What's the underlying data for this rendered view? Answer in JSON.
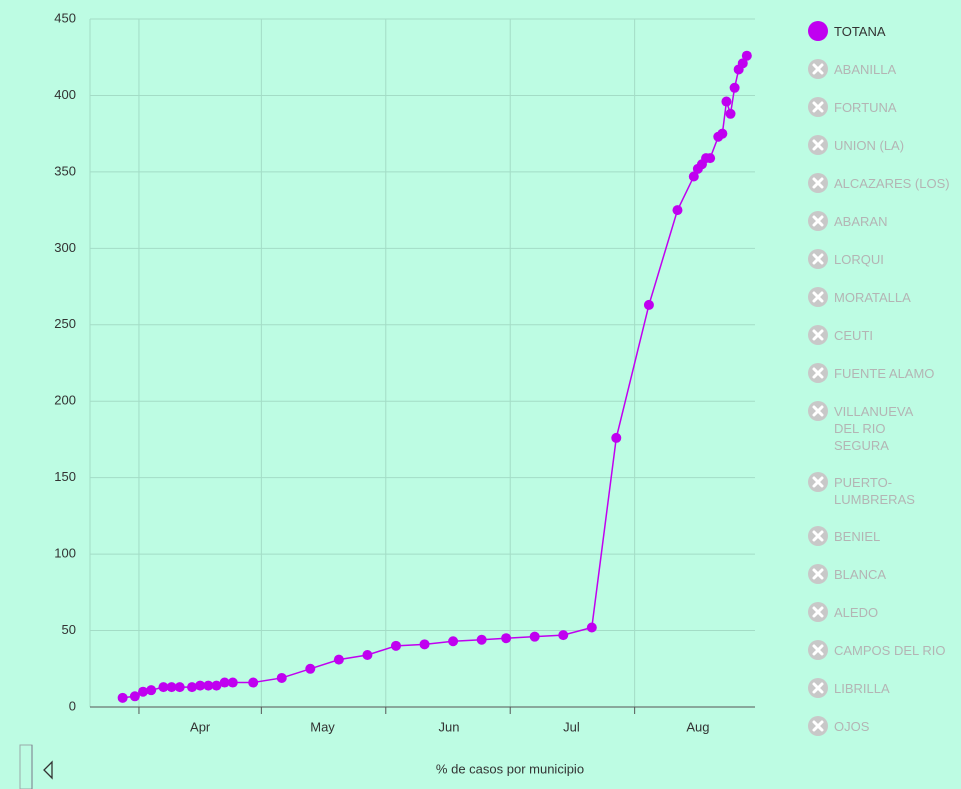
{
  "chart_data": {
    "type": "line",
    "x_label": "% de casos por municipio",
    "x": [
      88,
      91,
      93,
      95,
      98,
      100,
      102,
      105,
      107,
      109,
      111,
      113,
      115,
      120,
      127,
      134,
      141,
      148,
      155,
      162,
      169,
      176,
      182,
      189,
      196,
      203,
      209,
      217,
      224,
      228,
      229,
      230,
      231,
      232,
      234,
      235,
      236,
      237,
      238,
      239,
      240,
      241
    ],
    "series": [
      {
        "name": "TOTANA",
        "color": "#c000f0",
        "values": [
          6,
          7,
          10,
          11,
          13,
          13,
          13,
          13,
          14,
          14,
          14,
          16,
          16,
          16,
          19,
          25,
          31,
          34,
          40,
          41,
          43,
          44,
          45,
          46,
          47,
          52,
          176,
          263,
          325,
          347,
          352,
          355,
          359,
          359,
          373,
          375,
          396,
          388,
          405,
          417,
          421,
          426
        ]
      }
    ],
    "hidden_series": [
      "ABANILLA",
      "FORTUNA",
      "UNION (LA)",
      "ALCAZARES (LOS)",
      "ABARAN",
      "LORQUI",
      "MORATALLA",
      "CEUTI",
      "FUENTE ALAMO",
      "VILLANUEVA DEL RIO SEGURA",
      "PUERTO-LUMBRERAS",
      "BENIEL",
      "BLANCA",
      "ALEDO",
      "CAMPOS DEL RIO",
      "LIBRILLA",
      "OJOS"
    ],
    "xlim": [
      80,
      243
    ],
    "xticks": [
      {
        "value": 107,
        "label": "Apr"
      },
      {
        "value": 137,
        "label": "May"
      },
      {
        "value": 168,
        "label": "Jun"
      },
      {
        "value": 198,
        "label": "Jul"
      },
      {
        "value": 229,
        "label": "Aug"
      }
    ],
    "ylim": [
      0,
      450
    ],
    "yticks": [
      0,
      50,
      100,
      150,
      200,
      250,
      300,
      350,
      400,
      450
    ],
    "grid": true,
    "legend": "right"
  }
}
